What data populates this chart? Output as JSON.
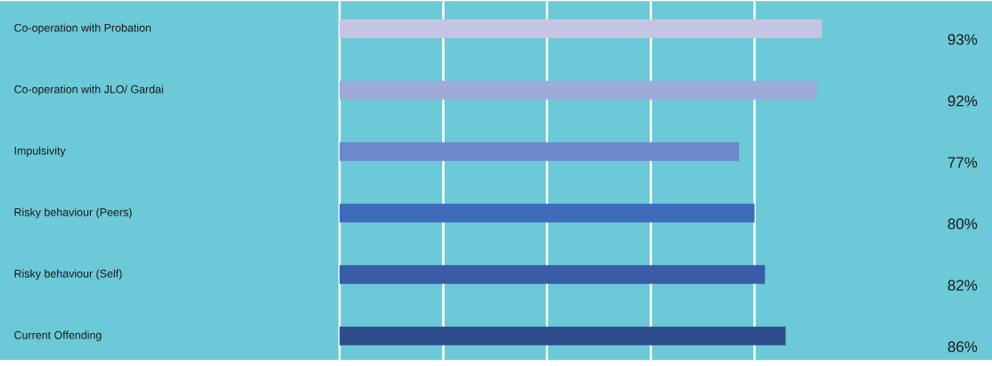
{
  "chart_data": {
    "type": "bar",
    "orientation": "horizontal",
    "categories": [
      "Co-operation with Probation",
      "Co-operation with JLO/ Gardai",
      "Impulsivity",
      "Risky behaviour (Peers)",
      "Risky behaviour (Self)",
      "Current Offending"
    ],
    "values": [
      93,
      92,
      77,
      80,
      82,
      86
    ],
    "colors": [
      "#c5c5e3",
      "#9daad8",
      "#6f87cc",
      "#3f6bbd",
      "#3a5ba6",
      "#2f4d8d"
    ],
    "value_labels": [
      "93%",
      "92%",
      "77%",
      "80%",
      "82%",
      "86%"
    ],
    "xticks": [
      {
        "value": 0,
        "label": null
      },
      {
        "value": 20,
        "label": null
      },
      {
        "value": 40,
        "label": null
      },
      {
        "value": 60,
        "label": null
      },
      {
        "value": 80,
        "label": null
      }
    ],
    "grid": "x",
    "tick_labels": "y"
  }
}
